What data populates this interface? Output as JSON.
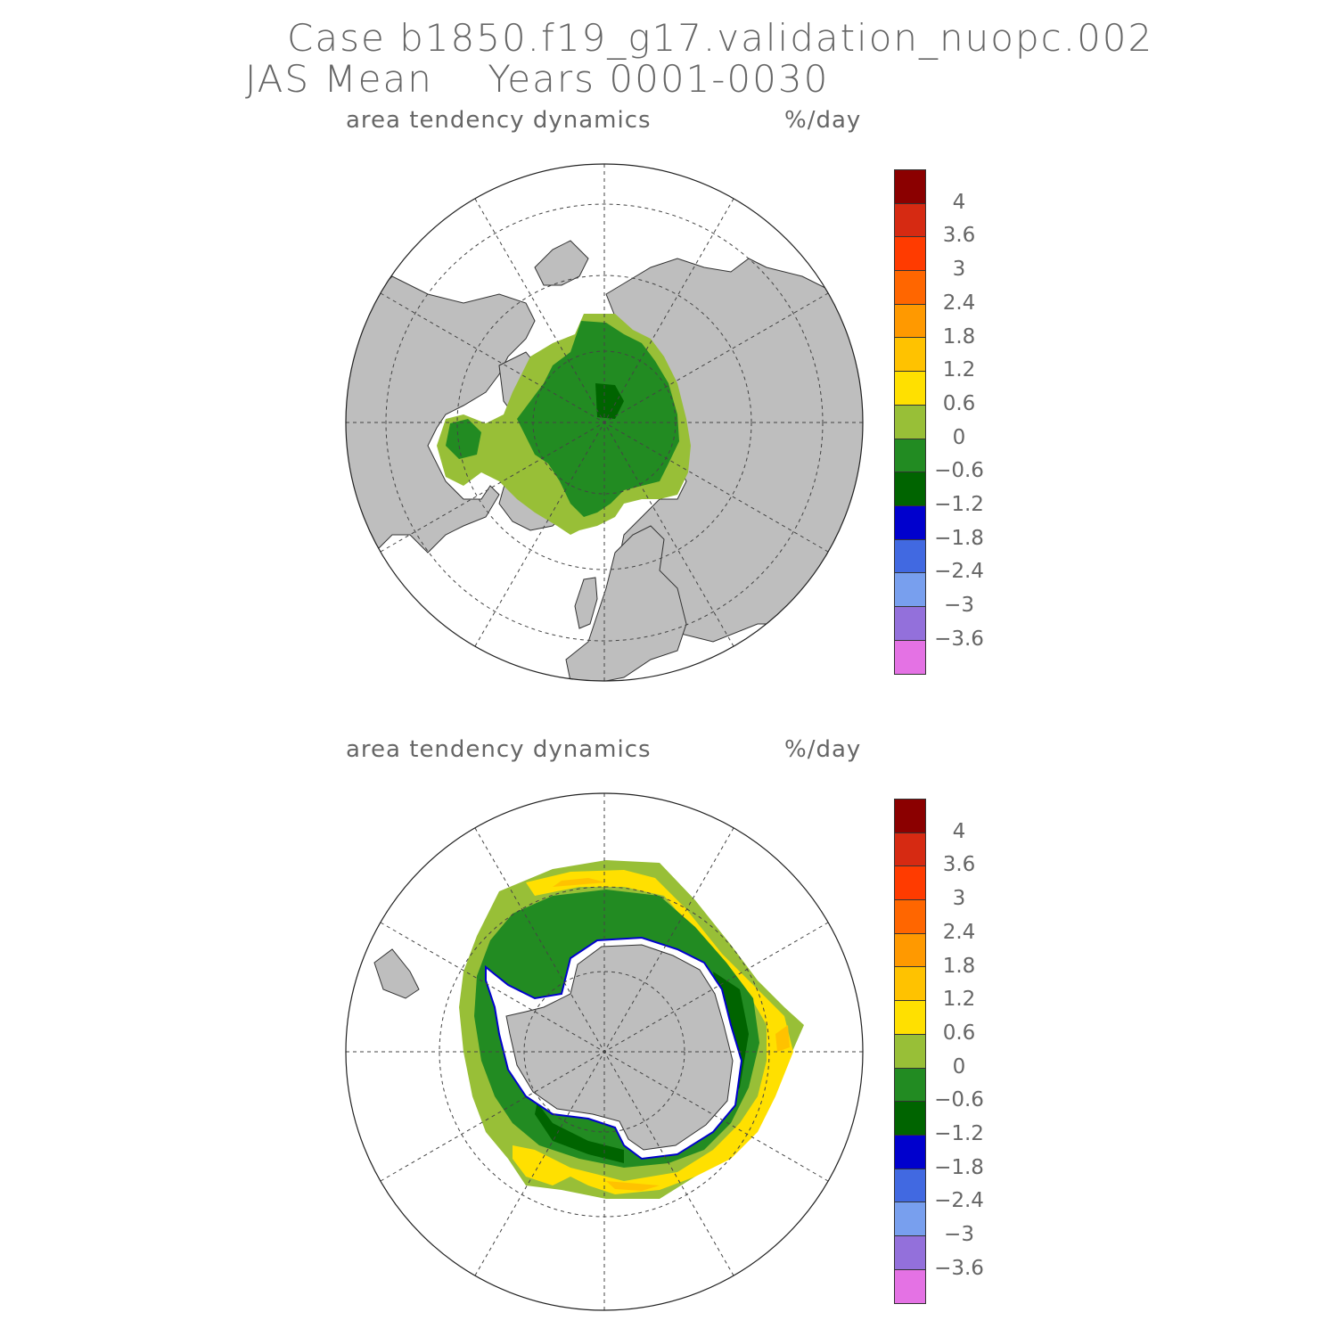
{
  "header": {
    "case_line": "Case b1850.f19_g17.validation_nuopc.002",
    "period_line": "JAS Mean    Years 0001-0030"
  },
  "panels": [
    {
      "hemisphere": "north",
      "variable_label": "area tendency dynamics",
      "units_label": "%/day"
    },
    {
      "hemisphere": "south",
      "variable_label": "area tendency dynamics",
      "units_label": "%/day"
    }
  ],
  "colorbar": {
    "colors": [
      "#8b0000",
      "#d62a12",
      "#ff3b00",
      "#ff6600",
      "#ff9900",
      "#ffc200",
      "#ffe000",
      "#98bf37",
      "#228b22",
      "#006400",
      "#0000cd",
      "#4169e1",
      "#789fee",
      "#9370db",
      "#e472e4"
    ],
    "labels": [
      "4",
      "3.6",
      "3",
      "2.4",
      "1.8",
      "1.2",
      "0.6",
      "0",
      "-0.6",
      "-1.2",
      "-1.8",
      "-2.4",
      "-3",
      "-3.6"
    ]
  },
  "map_colors": {
    "land": "#bebebe",
    "ocean": "#ffffff",
    "grid": "#444444"
  },
  "chart_data": [
    {
      "type": "heatmap",
      "projection": "north-polar-stereographic",
      "title": "area tendency dynamics",
      "units": "%/day",
      "levels": [
        -3.6,
        -3,
        -2.4,
        -1.8,
        -1.2,
        -0.6,
        0,
        0.6,
        1.2,
        1.8,
        2.4,
        3,
        3.6,
        4
      ],
      "dominant_values": "central Arctic mostly -0.6 to 0; marginal ice zone 0 to 0.6"
    },
    {
      "type": "heatmap",
      "projection": "south-polar-stereographic",
      "title": "area tendency dynamics",
      "units": "%/day",
      "levels": [
        -3.6,
        -3,
        -2.4,
        -1.8,
        -1.2,
        -0.6,
        0,
        0.6,
        1.2,
        1.8,
        2.4,
        3,
        3.6,
        4
      ],
      "dominant_values": "inner pack -1.2 to 0; ice edge ring 0 to 1.8; coastal strip below -1.2"
    }
  ]
}
